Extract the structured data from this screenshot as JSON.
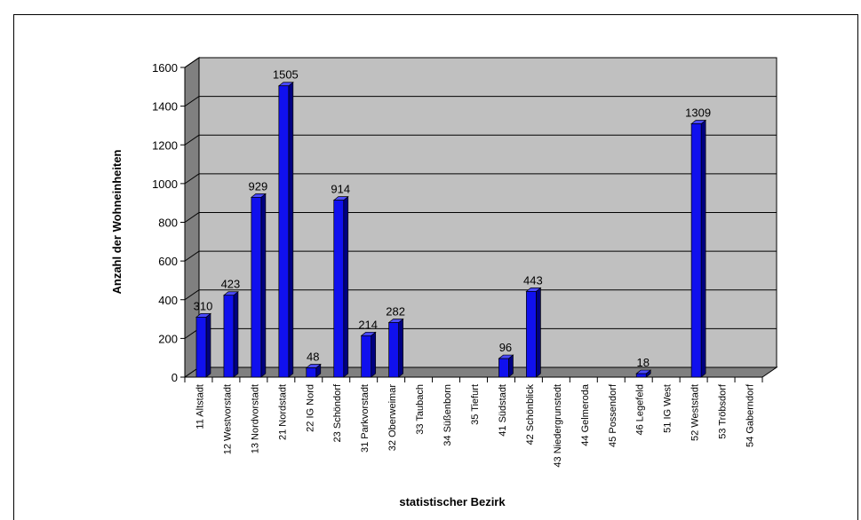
{
  "chart_data": {
    "type": "bar",
    "xlabel": "statistischer Bezirk",
    "ylabel": "Anzahl der Wohneinheiten",
    "ylim": [
      0,
      1600
    ],
    "yticks": [
      0,
      200,
      400,
      600,
      800,
      1000,
      1200,
      1400,
      1600
    ],
    "grid": true,
    "colors": {
      "bar_front": "#1010ee",
      "bar_side": "#000080",
      "bar_top": "#4a4aff",
      "plot_bg": "#c0c0c0",
      "floor": "#808080"
    },
    "categories": [
      "11 Altstadt",
      "12 Westvorstadt",
      "13 Nordvorstadt",
      "21 Nordstadt",
      "22 IG Nord",
      "23 Schöndorf",
      "31 Parkvorstadt",
      "32 Oberweimar",
      "33 Taubach",
      "34 Süßenborn",
      "35 Tiefurt",
      "41 Südstadt",
      "42 Schönblick",
      "43 Niedergrunstedt",
      "44 Gelmeroda",
      "45 Possendorf",
      "46 Legefeld",
      "51 IG West",
      "52 Weststadt",
      "53 Tröbsdorf",
      "54 Gaberndorf"
    ],
    "values": [
      310,
      423,
      929,
      1505,
      48,
      914,
      214,
      282,
      null,
      null,
      null,
      96,
      443,
      null,
      null,
      null,
      18,
      null,
      1309,
      null,
      null
    ],
    "data_labels": [
      "310",
      "423",
      "929",
      "1505",
      "48",
      "914",
      "214",
      "282",
      "",
      "",
      "",
      "96",
      "443",
      "",
      "",
      "",
      "18",
      "",
      "1309",
      "",
      ""
    ]
  }
}
